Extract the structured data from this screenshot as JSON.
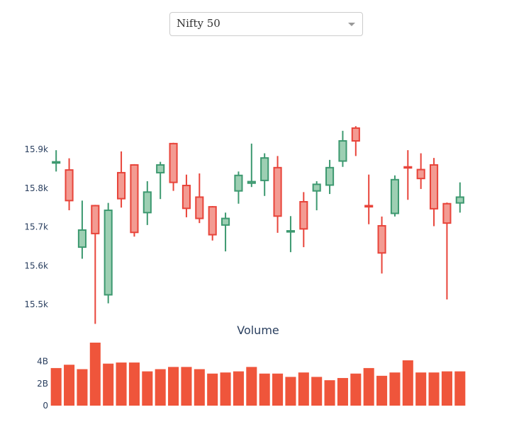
{
  "dropdown": {
    "selected": "Nifty 50"
  },
  "colors": {
    "increasing": "#3d9970",
    "increasing_fill": "#9dcfb3",
    "decreasing": "#e8443a",
    "decreasing_fill": "#f39b92",
    "volume": "#ef553b"
  },
  "chart_data": [
    {
      "type": "candlestick",
      "title": "",
      "ylim": [
        15440,
        15975
      ],
      "yticks": [
        15500,
        15600,
        15700,
        15800,
        15900
      ],
      "ytick_labels": [
        "15.5k",
        "15.6k",
        "15.7k",
        "15.8k",
        "15.9k"
      ],
      "candles": [
        {
          "open": 15865,
          "high": 15898,
          "low": 15843,
          "close": 15868
        },
        {
          "open": 15847,
          "high": 15877,
          "low": 15743,
          "close": 15768
        },
        {
          "open": 15648,
          "high": 15768,
          "low": 15618,
          "close": 15692
        },
        {
          "open": 15755,
          "high": 15757,
          "low": 15450,
          "close": 15683
        },
        {
          "open": 15525,
          "high": 15762,
          "low": 15503,
          "close": 15743
        },
        {
          "open": 15840,
          "high": 15895,
          "low": 15750,
          "close": 15773
        },
        {
          "open": 15860,
          "high": 15862,
          "low": 15675,
          "close": 15686
        },
        {
          "open": 15737,
          "high": 15818,
          "low": 15705,
          "close": 15790
        },
        {
          "open": 15840,
          "high": 15868,
          "low": 15772,
          "close": 15860
        },
        {
          "open": 15915,
          "high": 15917,
          "low": 15793,
          "close": 15815
        },
        {
          "open": 15807,
          "high": 15835,
          "low": 15725,
          "close": 15748
        },
        {
          "open": 15777,
          "high": 15838,
          "low": 15710,
          "close": 15722
        },
        {
          "open": 15752,
          "high": 15754,
          "low": 15665,
          "close": 15680
        },
        {
          "open": 15705,
          "high": 15737,
          "low": 15637,
          "close": 15722
        },
        {
          "open": 15793,
          "high": 15843,
          "low": 15760,
          "close": 15833
        },
        {
          "open": 15813,
          "high": 15915,
          "low": 15803,
          "close": 15817
        },
        {
          "open": 15820,
          "high": 15890,
          "low": 15780,
          "close": 15878
        },
        {
          "open": 15853,
          "high": 15883,
          "low": 15685,
          "close": 15728
        },
        {
          "open": 15688,
          "high": 15728,
          "low": 15635,
          "close": 15690
        },
        {
          "open": 15765,
          "high": 15790,
          "low": 15648,
          "close": 15695
        },
        {
          "open": 15793,
          "high": 15818,
          "low": 15743,
          "close": 15810
        },
        {
          "open": 15808,
          "high": 15873,
          "low": 15785,
          "close": 15853
        },
        {
          "open": 15870,
          "high": 15948,
          "low": 15855,
          "close": 15922
        },
        {
          "open": 15955,
          "high": 15960,
          "low": 15883,
          "close": 15922
        },
        {
          "open": 15755,
          "high": 15835,
          "low": 15707,
          "close": 15752
        },
        {
          "open": 15703,
          "high": 15727,
          "low": 15580,
          "close": 15633
        },
        {
          "open": 15735,
          "high": 15833,
          "low": 15727,
          "close": 15822
        },
        {
          "open": 15855,
          "high": 15898,
          "low": 15770,
          "close": 15853
        },
        {
          "open": 15848,
          "high": 15890,
          "low": 15798,
          "close": 15825
        },
        {
          "open": 15860,
          "high": 15878,
          "low": 15702,
          "close": 15747
        },
        {
          "open": 15760,
          "high": 15763,
          "low": 15513,
          "close": 15710
        },
        {
          "open": 15762,
          "high": 15815,
          "low": 15737,
          "close": 15777
        }
      ]
    },
    {
      "type": "bar",
      "title": "Volume",
      "ylim": [
        0,
        5.7
      ],
      "yticks": [
        0,
        2,
        4
      ],
      "ytick_labels": [
        "0",
        "2B",
        "4B"
      ],
      "units": "billions",
      "values": [
        3.4,
        3.7,
        3.3,
        5.7,
        3.8,
        3.9,
        3.9,
        3.1,
        3.3,
        3.5,
        3.5,
        3.3,
        2.9,
        3.0,
        3.1,
        3.5,
        2.9,
        2.9,
        2.6,
        3.0,
        2.6,
        2.3,
        2.5,
        2.9,
        3.4,
        2.7,
        3.0,
        4.1,
        3.0,
        3.0,
        3.1,
        3.1
      ]
    }
  ]
}
